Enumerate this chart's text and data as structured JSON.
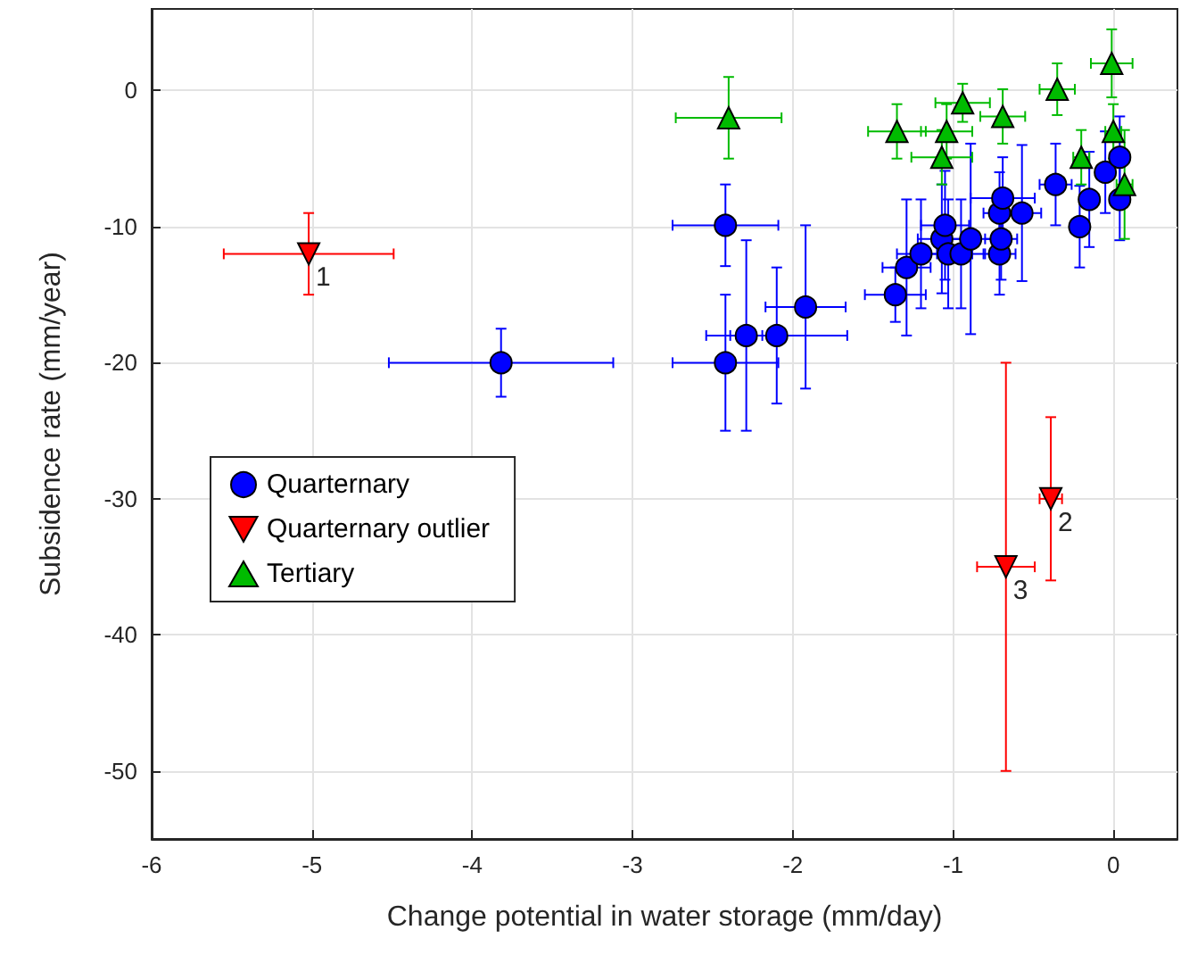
{
  "chart_data": {
    "type": "scatter",
    "xlabel": "Change potential in water storage (mm/day)",
    "ylabel": "Subsidence rate (mm/year)",
    "xlim": [
      -6,
      0.4
    ],
    "xticks": [
      -6,
      -5,
      -4,
      -3,
      -2,
      -1,
      0
    ],
    "ylim": [
      -55,
      6
    ],
    "yticks": [
      -50,
      -40,
      -30,
      -20,
      -10,
      0
    ],
    "grid": true,
    "legend": "left",
    "series": [
      {
        "name": "Quarternary",
        "color": "#0000ff",
        "marker": "circle",
        "x": [
          -3.82,
          -2.42,
          -2.42,
          -2.29,
          -2.1,
          -1.92,
          -1.36,
          -1.29,
          -1.2,
          -1.07,
          -1.05,
          -1.03,
          -0.95,
          -0.89,
          -0.71,
          -0.7,
          -0.71,
          -0.69,
          -0.57,
          -0.36,
          -0.21,
          -0.15,
          -0.05,
          0.04,
          0.04
        ],
        "values": [
          -20,
          -9.9,
          -20,
          -18,
          -18,
          -15.9,
          -15,
          -13,
          -12,
          -10.9,
          -9.9,
          -12,
          -12,
          -10.9,
          -12,
          -10.9,
          -9,
          -7.9,
          -9,
          -6.9,
          -10,
          -8,
          -6,
          -4.9,
          -8
        ],
        "xerrors": [
          0.7,
          0.33,
          0.33,
          0.1,
          0.44,
          0.25,
          0.19,
          0.15,
          0.15,
          0.15,
          0.15,
          0.15,
          0.15,
          0.15,
          0.1,
          0.1,
          0.1,
          0.2,
          0.12,
          0.1,
          0.05,
          0.05,
          0.05,
          0.05,
          0.05
        ],
        "errors": [
          2.5,
          3,
          5,
          7,
          5,
          6,
          2,
          5,
          4,
          4,
          4,
          4,
          4,
          7,
          3,
          3,
          3,
          3,
          5,
          3,
          3,
          3.5,
          3,
          3,
          3
        ]
      },
      {
        "name": "Quarternary outlier",
        "color": "#ff0000",
        "marker": "triangle-down",
        "x": [
          -5.02,
          -0.39,
          -0.67
        ],
        "values": [
          -12,
          -30,
          -35
        ],
        "xerrors": [
          0.53,
          0.07,
          0.18
        ],
        "errors": [
          3,
          [
            -36,
            -24
          ],
          [
            -50,
            -20
          ]
        ]
      },
      {
        "name": "Tertiary",
        "color": "#00bb00",
        "marker": "triangle",
        "x": [
          -2.4,
          -1.35,
          -1.04,
          -0.94,
          -0.69,
          -1.07,
          -0.35,
          -0.01,
          0,
          -0.2,
          0.07
        ],
        "values": [
          -2,
          -3,
          -3,
          -0.9,
          -1.9,
          -4.9,
          0.1,
          2,
          -3,
          -4.9,
          -6.9
        ],
        "xerrors": [
          0.33,
          0.18,
          0.16,
          0.17,
          0.14,
          0.19,
          0.11,
          0.13,
          0.05,
          0.05,
          0.05
        ],
        "errors": [
          3,
          2,
          2,
          1.4,
          2,
          2,
          1.9,
          2.5,
          2,
          2,
          4
        ]
      }
    ],
    "annotations": [
      {
        "text": "1",
        "x": -5.02,
        "y": -12
      },
      {
        "text": "2",
        "x": -0.39,
        "y": -30
      },
      {
        "text": "3",
        "x": -0.67,
        "y": -35
      }
    ]
  }
}
